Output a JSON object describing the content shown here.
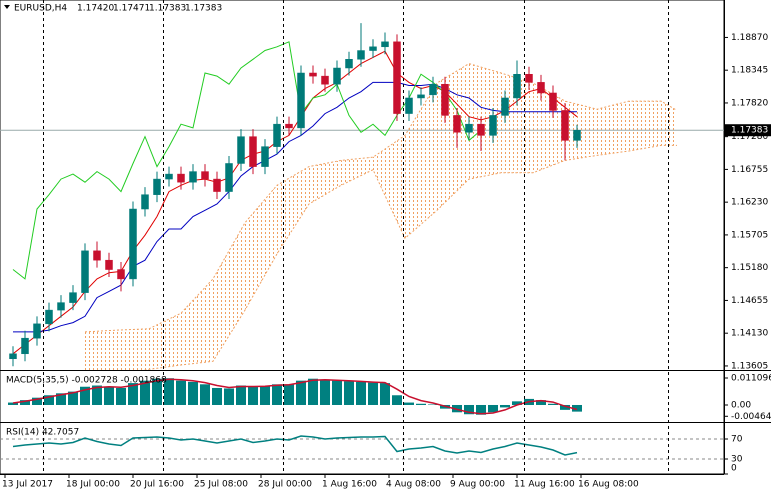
{
  "header": {
    "symbol": "EURUSD,H4",
    "quote": [
      "1.17420",
      "1.17471",
      "1.17383",
      "1.17383"
    ]
  },
  "chart_data": [
    {
      "type": "candlestick",
      "xlim": [
        -1.25,
        179.75
      ],
      "ylim": [
        1.1354,
        1.1947
      ],
      "yticks": [
        {
          "value": 1.1887,
          "label": "1.18870"
        },
        {
          "value": 1.18345,
          "label": "1.18345"
        },
        {
          "value": 1.1782,
          "label": "1.17820"
        },
        {
          "value": 1.1728,
          "label": "1.17280"
        },
        {
          "value": 1.16755,
          "label": "1.16755"
        },
        {
          "value": 1.1623,
          "label": "1.16230"
        },
        {
          "value": 1.15705,
          "label": "1.15705"
        },
        {
          "value": 1.1518,
          "label": "1.15180"
        },
        {
          "value": 1.14655,
          "label": "1.14655"
        },
        {
          "value": 1.1413,
          "label": "1.14130"
        },
        {
          "value": 1.13605,
          "label": "1.13605"
        }
      ],
      "xticks": [
        {
          "value": 0,
          "label": "13 Jul 2017"
        },
        {
          "value": 16,
          "label": "18 Jul 00:00"
        },
        {
          "value": 32,
          "label": "20 Jul 16:00"
        },
        {
          "value": 48,
          "label": "25 Jul 08:00"
        },
        {
          "value": 64,
          "label": "28 Jul 00:00"
        },
        {
          "value": 80,
          "label": "1 Aug 16:00"
        },
        {
          "value": 96,
          "label": "4 Aug 08:00"
        },
        {
          "value": 112,
          "label": "9 Aug 00:00"
        },
        {
          "value": 128,
          "label": "11 Aug 16:00"
        },
        {
          "value": 144,
          "label": "16 Aug 08:00"
        }
      ],
      "separators": [
        9.5,
        39.5,
        69.5,
        99.5,
        129.75,
        165.75
      ],
      "last_price": 1.17383,
      "up_color": "#007a78",
      "down_color": "#c8102e",
      "x": [
        2,
        5,
        8,
        11,
        14,
        17,
        20,
        23,
        26,
        29,
        32,
        35,
        38,
        41,
        44,
        47,
        50,
        53,
        56,
        59,
        62,
        65,
        68,
        71,
        74,
        77,
        80,
        83,
        86,
        89,
        92,
        95,
        98,
        101,
        104,
        107,
        110,
        113,
        116,
        119,
        122,
        125,
        128,
        131,
        134,
        137,
        140,
        143
      ],
      "open": [
        1.1372,
        1.138,
        1.1405,
        1.1428,
        1.145,
        1.1462,
        1.1478,
        1.1545,
        1.153,
        1.1515,
        1.15,
        1.1612,
        1.1635,
        1.166,
        1.1668,
        1.1655,
        1.1672,
        1.166,
        1.164,
        1.1685,
        1.1728,
        1.168,
        1.1712,
        1.1748,
        1.1742,
        1.183,
        1.1825,
        1.1812,
        1.1838,
        1.1852,
        1.1866,
        1.1872,
        1.188,
        1.1765,
        1.179,
        1.1795,
        1.1812,
        1.1762,
        1.1735,
        1.1748,
        1.173,
        1.1762,
        1.179,
        1.1828,
        1.1815,
        1.1798,
        1.177,
        1.1722
      ],
      "high": [
        1.1392,
        1.1417,
        1.144,
        1.1462,
        1.1474,
        1.149,
        1.1557,
        1.156,
        1.1542,
        1.1527,
        1.1624,
        1.1647,
        1.1672,
        1.168,
        1.168,
        1.1684,
        1.1684,
        1.1672,
        1.1697,
        1.174,
        1.174,
        1.1724,
        1.176,
        1.176,
        1.1842,
        1.1842,
        1.1837,
        1.185,
        1.1864,
        1.191,
        1.1884,
        1.1895,
        1.1892,
        1.1802,
        1.1807,
        1.1824,
        1.1824,
        1.1774,
        1.176,
        1.176,
        1.1774,
        1.1802,
        1.185,
        1.184,
        1.1827,
        1.181,
        1.1782,
        1.17471
      ],
      "low": [
        1.136,
        1.1368,
        1.1393,
        1.1416,
        1.1438,
        1.145,
        1.1466,
        1.1518,
        1.1503,
        1.148,
        1.1488,
        1.16,
        1.1623,
        1.1648,
        1.1643,
        1.1643,
        1.1648,
        1.1628,
        1.1628,
        1.1673,
        1.1668,
        1.1668,
        1.17,
        1.173,
        1.173,
        1.1813,
        1.18,
        1.18,
        1.1826,
        1.184,
        1.1854,
        1.186,
        1.1753,
        1.1753,
        1.1778,
        1.1783,
        1.175,
        1.171,
        1.1723,
        1.1705,
        1.1718,
        1.175,
        1.1778,
        1.1803,
        1.1786,
        1.1758,
        1.169,
        1.171
      ],
      "close": [
        1.138,
        1.1405,
        1.1428,
        1.145,
        1.1462,
        1.1478,
        1.1545,
        1.153,
        1.1515,
        1.15,
        1.1612,
        1.1635,
        1.166,
        1.1668,
        1.1655,
        1.1672,
        1.166,
        1.164,
        1.1685,
        1.1728,
        1.168,
        1.1712,
        1.1748,
        1.1742,
        1.183,
        1.1825,
        1.1812,
        1.1838,
        1.1852,
        1.1866,
        1.1872,
        1.188,
        1.1765,
        1.179,
        1.1795,
        1.1812,
        1.1762,
        1.1735,
        1.1748,
        1.173,
        1.1762,
        1.179,
        1.1828,
        1.1815,
        1.1798,
        1.177,
        1.1722,
        1.17383
      ],
      "cloud": {
        "color": "#f0a060",
        "x": [
          20,
          28,
          36,
          44,
          52,
          60,
          68,
          76,
          84,
          92,
          100,
          108,
          116,
          124,
          132,
          140,
          148,
          156,
          164,
          168
        ],
        "span_a": [
          1.1415,
          1.1418,
          1.142,
          1.1445,
          1.15,
          1.159,
          1.165,
          1.168,
          1.169,
          1.1695,
          1.173,
          1.1814,
          1.1845,
          1.183,
          1.1814,
          1.1785,
          1.1772,
          1.1785,
          1.1785,
          1.177
        ],
        "span_b": [
          1.1345,
          1.1345,
          1.1355,
          1.1362,
          1.1368,
          1.145,
          1.154,
          1.162,
          1.165,
          1.1675,
          1.1565,
          1.161,
          1.166,
          1.167,
          1.167,
          1.169,
          1.1698,
          1.1705,
          1.1714,
          1.1714
        ]
      },
      "lines": [
        {
          "color": "#e00000",
          "values": [
            1.138,
            1.1395,
            1.141,
            1.1425,
            1.144,
            1.1455,
            1.148,
            1.15,
            1.151,
            1.1512,
            1.1545,
            1.157,
            1.16,
            1.164,
            1.165,
            1.1658,
            1.166,
            1.1655,
            1.1662,
            1.169,
            1.17,
            1.1705,
            1.172,
            1.173,
            1.176,
            1.179,
            1.1805,
            1.1815,
            1.183,
            1.1845,
            1.1855,
            1.1865,
            1.183,
            1.1815,
            1.1805,
            1.181,
            1.18,
            1.178,
            1.176,
            1.1755,
            1.176,
            1.177,
            1.1785,
            1.18,
            1.1805,
            1.179,
            1.1775,
            1.176
          ]
        },
        {
          "color": "#0000c0",
          "values": [
            1.1415,
            1.1415,
            1.1415,
            1.1418,
            1.1425,
            1.143,
            1.144,
            1.147,
            1.148,
            1.149,
            1.152,
            1.153,
            1.156,
            1.158,
            1.158,
            1.16,
            1.161,
            1.162,
            1.164,
            1.1665,
            1.168,
            1.169,
            1.17,
            1.172,
            1.173,
            1.1745,
            1.1765,
            1.1775,
            1.179,
            1.18,
            1.1815,
            1.1815,
            1.1815,
            1.181,
            1.181,
            1.1812,
            1.1805,
            1.1795,
            1.179,
            1.1775,
            1.177,
            1.1768,
            1.1768,
            1.1768,
            1.1768,
            1.1768,
            1.1768,
            1.1768
          ]
        },
        {
          "color": "#22cc22",
          "x": [
            2,
            5,
            8,
            11,
            14,
            17,
            20,
            23,
            26,
            29,
            32,
            35,
            38,
            41,
            44,
            47,
            50,
            53,
            56,
            59,
            62,
            65,
            68,
            71,
            74,
            77,
            80,
            83,
            86,
            89,
            92,
            95,
            98,
            101,
            104,
            107,
            110,
            113,
            116,
            119
          ],
          "values": [
            1.1515,
            1.15,
            1.1612,
            1.1635,
            1.166,
            1.1668,
            1.1655,
            1.1672,
            1.166,
            1.164,
            1.1685,
            1.1728,
            1.168,
            1.1712,
            1.1748,
            1.1742,
            1.183,
            1.1825,
            1.1812,
            1.1838,
            1.1852,
            1.1866,
            1.1872,
            1.188,
            1.1765,
            1.179,
            1.1795,
            1.1812,
            1.1762,
            1.1735,
            1.1748,
            1.173,
            1.1762,
            1.179,
            1.1828,
            1.1815,
            1.1798,
            1.177,
            1.1722,
            1.17383
          ]
        }
      ]
    },
    {
      "type": "macd",
      "title": "MACD(5,35,5) -0.002728 -0.001868",
      "ylim": [
        -0.00658,
        0.01397
      ],
      "yticks": [
        0.011096,
        {
          "value": 0,
          "label": "0.00"
        },
        -0.00464
      ],
      "histogram": {
        "color": "#008080",
        "values": [
          0.001,
          0.002,
          0.003,
          0.004,
          0.0048,
          0.0055,
          0.0075,
          0.008,
          0.0075,
          0.007,
          0.009,
          0.01,
          0.0108,
          0.011,
          0.01,
          0.0095,
          0.0085,
          0.007,
          0.0068,
          0.008,
          0.0075,
          0.0078,
          0.0085,
          0.0085,
          0.01,
          0.0108,
          0.0105,
          0.01,
          0.0098,
          0.0095,
          0.0092,
          0.009,
          0.004,
          0.001,
          0.0005,
          0.0002,
          -0.0015,
          -0.003,
          -0.0038,
          -0.004,
          -0.003,
          -0.001,
          0.0015,
          0.0025,
          0.002,
          0.0005,
          -0.002,
          -0.002728
        ]
      },
      "signal": {
        "color": "#c8102e",
        "values": [
          0.0008,
          0.0015,
          0.0024,
          0.0033,
          0.0042,
          0.005,
          0.0062,
          0.0072,
          0.0075,
          0.0073,
          0.008,
          0.009,
          0.01,
          0.0106,
          0.0104,
          0.01,
          0.0092,
          0.008,
          0.0072,
          0.0076,
          0.0076,
          0.0077,
          0.0081,
          0.0083,
          0.0092,
          0.0102,
          0.0104,
          0.0102,
          0.01,
          0.0097,
          0.0094,
          0.0092,
          0.0065,
          0.0035,
          0.0018,
          0.0008,
          -0.0005,
          -0.0018,
          -0.003,
          -0.0036,
          -0.0033,
          -0.002,
          0.0,
          0.0014,
          0.0018,
          0.0012,
          -0.0005,
          -0.001868
        ]
      }
    },
    {
      "type": "rsi",
      "title": "RSI(14) 42.7057",
      "ylim": [
        0,
        100
      ],
      "yticks": [
        70,
        30,
        0
      ],
      "levels": [
        70,
        30
      ],
      "color": "#008080",
      "values": [
        55,
        58,
        60,
        62,
        60,
        63,
        72,
        65,
        60,
        57,
        72,
        73,
        74,
        72,
        68,
        70,
        66,
        62,
        66,
        70,
        63,
        66,
        70,
        68,
        76,
        74,
        70,
        72,
        73,
        74,
        74,
        75,
        45,
        50,
        52,
        55,
        46,
        42,
        46,
        43,
        50,
        55,
        62,
        58,
        54,
        48,
        38,
        42.7057
      ]
    }
  ]
}
